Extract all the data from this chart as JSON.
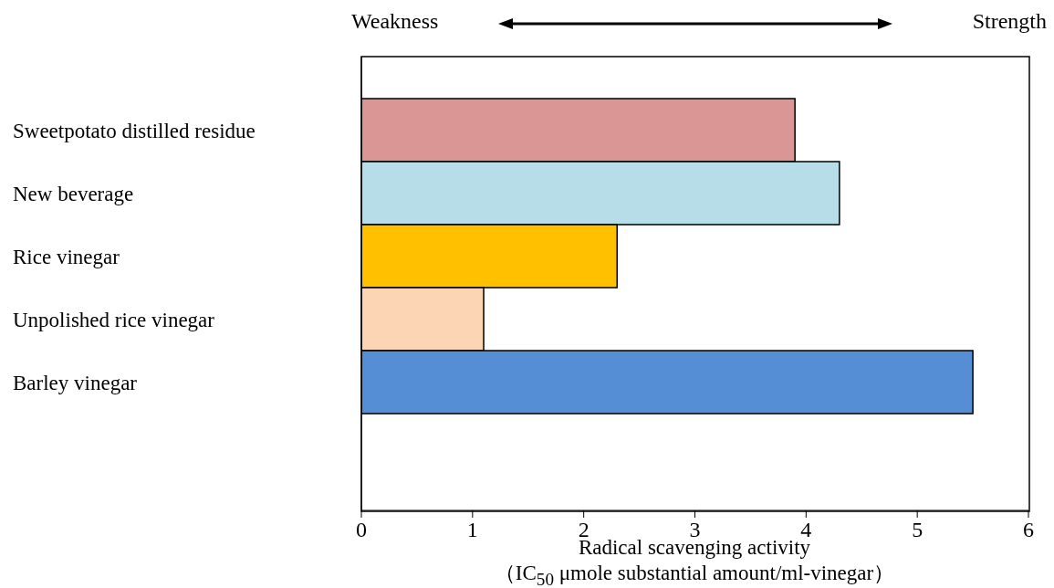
{
  "chart_data": {
    "type": "bar",
    "orientation": "horizontal",
    "categories": [
      "Sweetpotato distilled residue",
      "New beverage",
      "Rice vinegar",
      "Unpolished rice vinegar",
      "Barley vinegar"
    ],
    "values": [
      3.9,
      4.3,
      2.3,
      1.1,
      5.5
    ],
    "colors": [
      "#d99694",
      "#b7dee8",
      "#ffc000",
      "#fcd5b5",
      "#558ed5"
    ],
    "xlim": [
      0,
      6
    ],
    "xticks": [
      0,
      1,
      2,
      3,
      4,
      5,
      6
    ],
    "xlabel": "Radical scavenging activity\n（IC$_{50}$  μmole substantial amount/ml-vinegar）",
    "annotations": [
      "Weakness",
      "Strength"
    ],
    "grid": false
  }
}
